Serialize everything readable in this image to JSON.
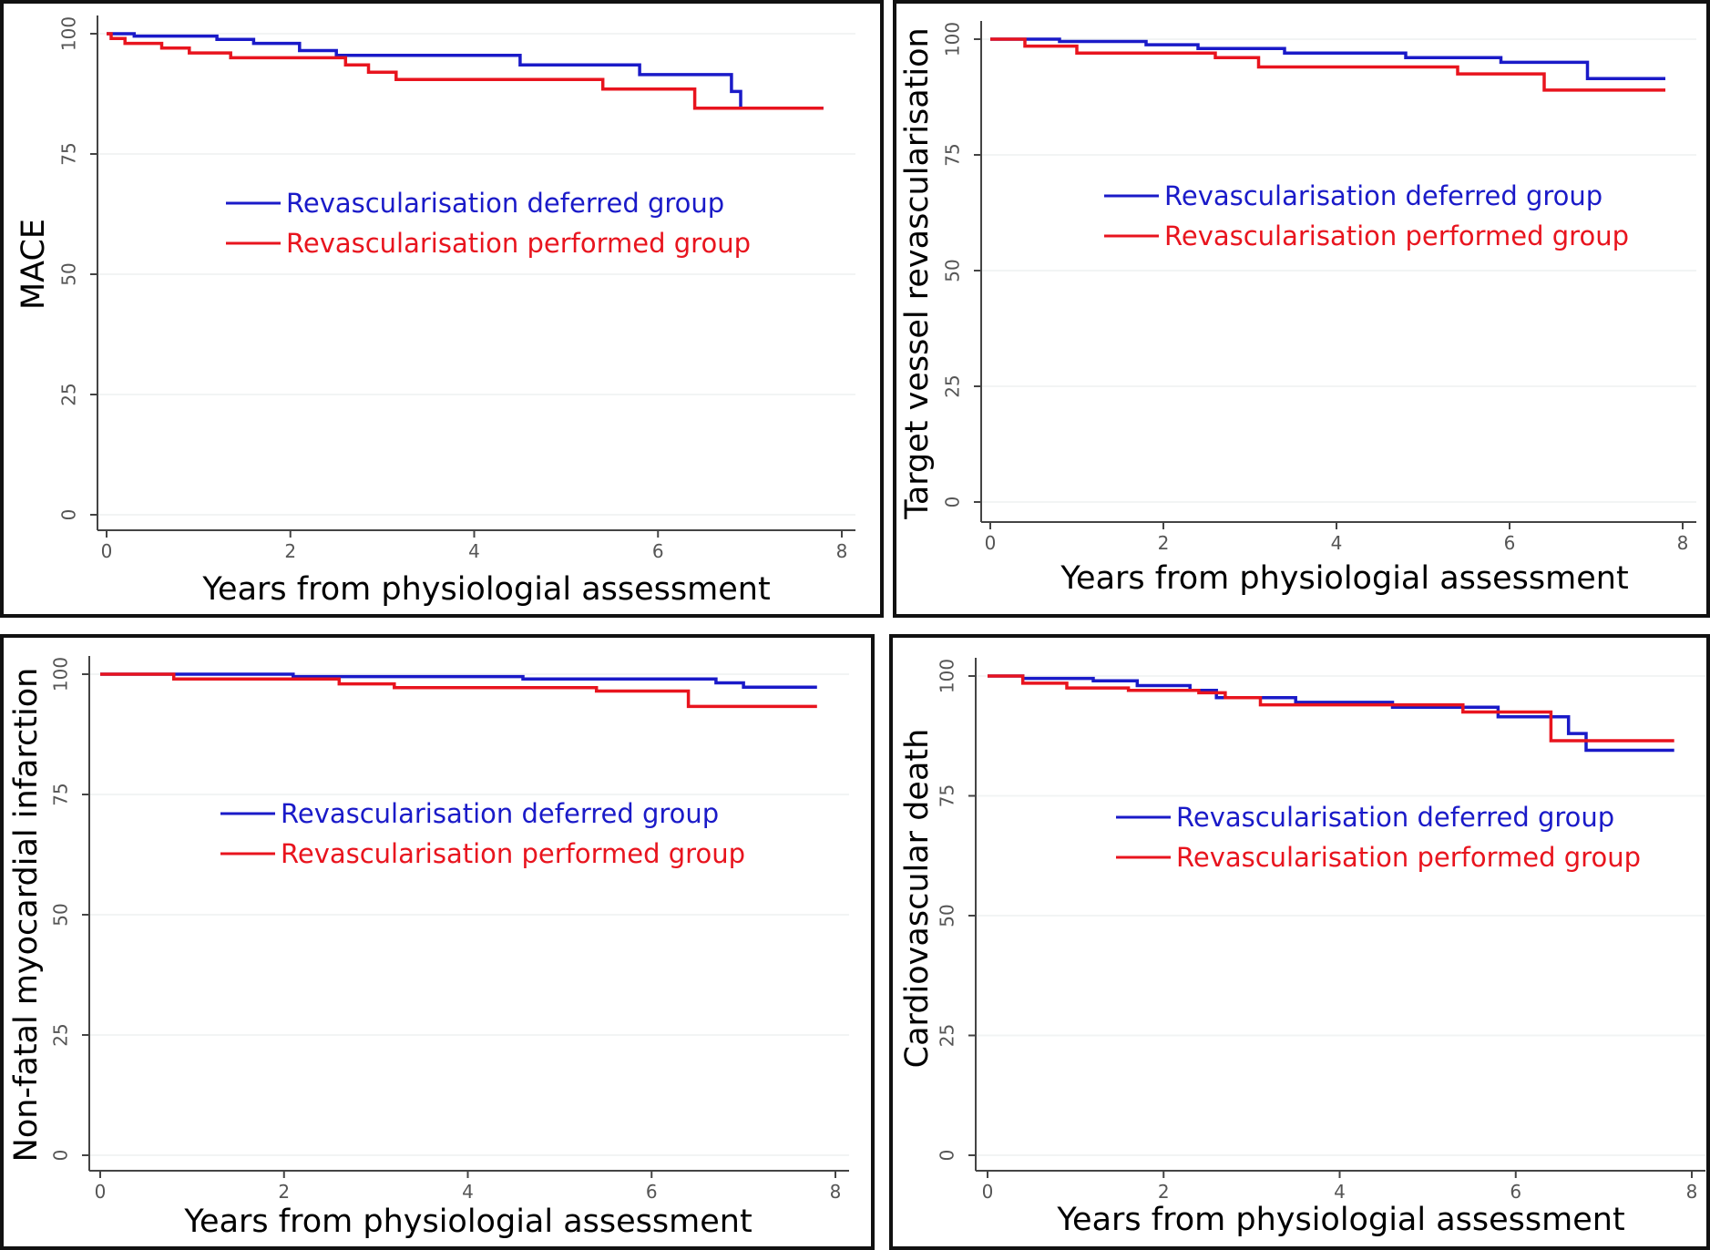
{
  "series_colors": {
    "deferred": "#1a1ac8",
    "performed": "#e8141e"
  },
  "chart_data": [
    {
      "type": "line",
      "ylabel": "MACE",
      "xlabel": "Years from physiologial assessment",
      "xlim": [
        0,
        8
      ],
      "ylim": [
        0,
        100
      ],
      "xticks": [
        "0",
        "2",
        "4",
        "6",
        "8"
      ],
      "yticks": [
        "0",
        "25",
        "50",
        "75",
        "100"
      ],
      "legend_position": "middle-left",
      "series": [
        {
          "name": "Revascularisation deferred group",
          "key": "deferred",
          "x": [
            0,
            0.3,
            0.3,
            1.2,
            1.2,
            1.6,
            1.6,
            2.1,
            2.1,
            2.5,
            2.5,
            4.5,
            4.5,
            5.8,
            5.8,
            6.8,
            6.8,
            6.9,
            6.9,
            7.8
          ],
          "y": [
            100,
            100,
            99.5,
            99.5,
            98.8,
            98.8,
            98,
            98,
            96.5,
            96.5,
            95.5,
            95.5,
            93.5,
            93.5,
            91.5,
            91.5,
            88,
            88,
            84.5,
            84.5
          ]
        },
        {
          "name": "Revascularisation performed group",
          "key": "performed",
          "x": [
            0,
            0.05,
            0.05,
            0.2,
            0.2,
            0.6,
            0.6,
            0.9,
            0.9,
            1.35,
            1.35,
            2.6,
            2.6,
            2.85,
            2.85,
            3.15,
            3.15,
            5.4,
            5.4,
            6.4,
            6.4,
            7.8
          ],
          "y": [
            100,
            100,
            99,
            99,
            98,
            98,
            97,
            97,
            96,
            96,
            95,
            95,
            93.5,
            93.5,
            92,
            92,
            90.5,
            90.5,
            88.5,
            88.5,
            84.5,
            84.5
          ]
        }
      ]
    },
    {
      "type": "line",
      "ylabel": "Target vessel revascularisation",
      "xlabel": "Years from physiologial assessment",
      "xlim": [
        0,
        8
      ],
      "ylim": [
        0,
        100
      ],
      "xticks": [
        "0",
        "2",
        "4",
        "6",
        "8"
      ],
      "yticks": [
        "0",
        "25",
        "50",
        "75",
        "100"
      ],
      "legend_position": "middle-left",
      "series": [
        {
          "name": "Revascularisation deferred group",
          "key": "deferred",
          "x": [
            0,
            0.8,
            0.8,
            1.8,
            1.8,
            2.4,
            2.4,
            3.4,
            3.4,
            4.8,
            4.8,
            5.9,
            5.9,
            6.9,
            6.9,
            7.8
          ],
          "y": [
            100,
            100,
            99.5,
            99.5,
            98.8,
            98.8,
            98,
            98,
            97,
            97,
            96,
            96,
            95,
            95,
            91.5,
            91.5
          ]
        },
        {
          "name": "Revascularisation performed group",
          "key": "performed",
          "x": [
            0,
            0.4,
            0.4,
            1.0,
            1.0,
            2.6,
            2.6,
            3.1,
            3.1,
            5.4,
            5.4,
            6.4,
            6.4,
            7.8
          ],
          "y": [
            100,
            100,
            98.5,
            98.5,
            97,
            97,
            96,
            96,
            94,
            94,
            92.5,
            92.5,
            89,
            89
          ]
        }
      ]
    },
    {
      "type": "line",
      "ylabel": "Non-fatal myocardial infarction",
      "xlabel": "Years from physiologial assessment",
      "xlim": [
        0,
        8
      ],
      "ylim": [
        0,
        100
      ],
      "xticks": [
        "0",
        "2",
        "4",
        "6",
        "8"
      ],
      "yticks": [
        "0",
        "25",
        "50",
        "75",
        "100"
      ],
      "legend_position": "middle-left",
      "series": [
        {
          "name": "Revascularisation deferred group",
          "key": "deferred",
          "x": [
            0,
            2.1,
            2.1,
            4.6,
            4.6,
            6.7,
            6.7,
            7.0,
            7.0,
            7.8
          ],
          "y": [
            100,
            100,
            99.5,
            99.5,
            99,
            99,
            98.2,
            98.2,
            97.3,
            97.3
          ]
        },
        {
          "name": "Revascularisation performed group",
          "key": "performed",
          "x": [
            0,
            0.8,
            0.8,
            2.6,
            2.6,
            3.2,
            3.2,
            5.4,
            5.4,
            6.4,
            6.4,
            7.8
          ],
          "y": [
            100,
            100,
            99,
            99,
            98,
            98,
            97.2,
            97.2,
            96.5,
            96.5,
            93.3,
            93.3
          ]
        }
      ]
    },
    {
      "type": "line",
      "ylabel": "Cardiovascular death",
      "xlabel": "Years from physiologial assessment",
      "xlim": [
        0,
        8
      ],
      "ylim": [
        0,
        100
      ],
      "xticks": [
        "0",
        "2",
        "4",
        "6",
        "8"
      ],
      "yticks": [
        "0",
        "25",
        "50",
        "75",
        "100"
      ],
      "legend_position": "middle-left",
      "series": [
        {
          "name": "Revascularisation deferred group",
          "key": "deferred",
          "x": [
            0,
            0.4,
            0.4,
            1.2,
            1.2,
            1.7,
            1.7,
            2.3,
            2.3,
            2.6,
            2.6,
            3.5,
            3.5,
            4.6,
            4.6,
            5.8,
            5.8,
            6.6,
            6.6,
            6.8,
            6.8,
            7.8
          ],
          "y": [
            100,
            100,
            99.5,
            99.5,
            99,
            99,
            98,
            98,
            97,
            97,
            95.5,
            95.5,
            94.5,
            94.5,
            93.5,
            93.5,
            91.5,
            91.5,
            88,
            88,
            84.5,
            84.5
          ]
        },
        {
          "name": "Revascularisation performed group",
          "key": "performed",
          "x": [
            0,
            0.4,
            0.4,
            0.9,
            0.9,
            1.6,
            1.6,
            2.4,
            2.4,
            2.7,
            2.7,
            3.1,
            3.1,
            5.4,
            5.4,
            6.4,
            6.4,
            7.8
          ],
          "y": [
            100,
            100,
            98.5,
            98.5,
            97.5,
            97.5,
            97,
            97,
            96.5,
            96.5,
            95.5,
            95.5,
            94,
            94,
            92.5,
            92.5,
            86.5,
            86.5
          ]
        }
      ]
    }
  ]
}
